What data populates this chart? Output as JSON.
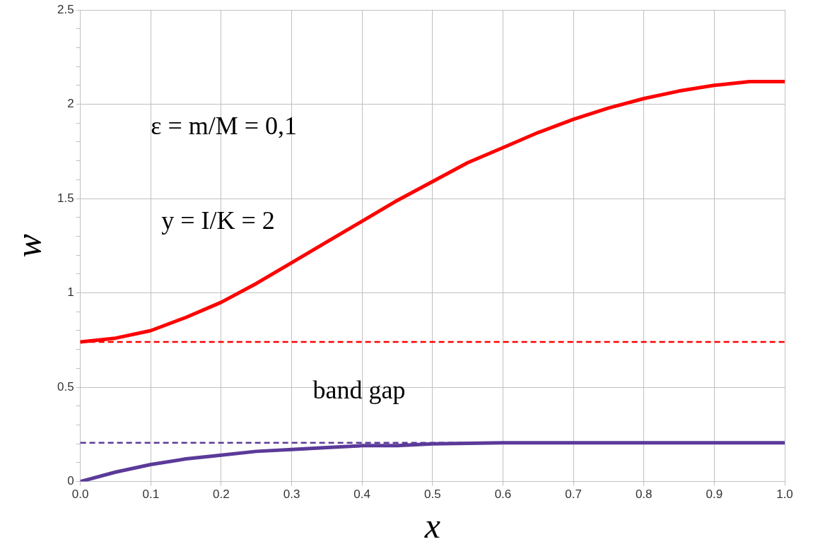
{
  "chart_data": {
    "type": "line",
    "xlabel": "x",
    "ylabel": "w",
    "xlim": [
      0,
      1
    ],
    "xticks": [
      {
        "value": 0,
        "label": "0.0"
      },
      0.1,
      0.2,
      0.3,
      0.4,
      0.5,
      0.6,
      0.7,
      0.8,
      0.9,
      {
        "value": 1,
        "label": "1.0"
      }
    ],
    "ylim": [
      0,
      2.5
    ],
    "yticks": [
      0,
      {
        "value": 0.1,
        "label": null
      },
      {
        "value": 0.2,
        "label": null
      },
      {
        "value": 0.3,
        "label": null
      },
      {
        "value": 0.4,
        "label": null
      },
      0.5,
      {
        "value": 0.6,
        "label": null
      },
      {
        "value": 0.7,
        "label": null
      },
      {
        "value": 0.8,
        "label": null
      },
      {
        "value": 0.9,
        "label": null
      },
      1,
      {
        "value": 1.1,
        "label": null
      },
      {
        "value": 1.2,
        "label": null
      },
      {
        "value": 1.3,
        "label": null
      },
      {
        "value": 1.4,
        "label": null
      },
      1.5,
      {
        "value": 1.6,
        "label": null
      },
      {
        "value": 1.7,
        "label": null
      },
      {
        "value": 1.8,
        "label": null
      },
      {
        "value": 1.9,
        "label": null
      },
      2,
      {
        "value": 2.1,
        "label": null
      },
      {
        "value": 2.2,
        "label": null
      },
      {
        "value": 2.3,
        "label": null
      },
      {
        "value": 2.4,
        "label": null
      },
      2.5
    ],
    "grid": true,
    "marker": "none",
    "line_style": "solid",
    "series": [
      {
        "color": "#ff0000",
        "x": [
          0,
          0.05,
          0.1,
          0.15,
          0.2,
          0.25,
          0.3,
          0.35,
          0.4,
          0.45,
          0.5,
          0.55,
          0.6,
          0.65,
          0.7,
          0.75,
          0.8,
          0.85,
          0.9,
          0.95,
          1
        ],
        "values": [
          0.74,
          0.76,
          0.8,
          0.87,
          0.95,
          1.05,
          1.16,
          1.27,
          1.38,
          1.49,
          1.59,
          1.69,
          1.77,
          1.85,
          1.92,
          1.98,
          2.03,
          2.07,
          2.1,
          2.12,
          2.12
        ]
      },
      {
        "color": "#5b3a9a",
        "x": [
          0,
          0.05,
          0.1,
          0.15,
          0.2,
          0.25,
          0.3,
          0.35,
          0.4,
          0.45,
          0.5,
          0.6,
          0.7,
          0.8,
          0.9,
          1
        ],
        "values": [
          0,
          0.05,
          0.09,
          0.12,
          0.14,
          0.16,
          0.17,
          0.18,
          0.19,
          0.19,
          0.2,
          0.205,
          0.205,
          0.205,
          0.205,
          0.205
        ]
      }
    ],
    "ref_lines": [
      {
        "axis": "y",
        "value": 0.74,
        "color": "#ff0000",
        "line_style": "dashed"
      },
      {
        "axis": "y",
        "value": 0.205,
        "color": "#5b3a9a",
        "line_style": "dashed"
      }
    ],
    "annotations": [
      "ε = m/M = 0,1",
      "y = I/K = 2",
      "band gap"
    ]
  }
}
